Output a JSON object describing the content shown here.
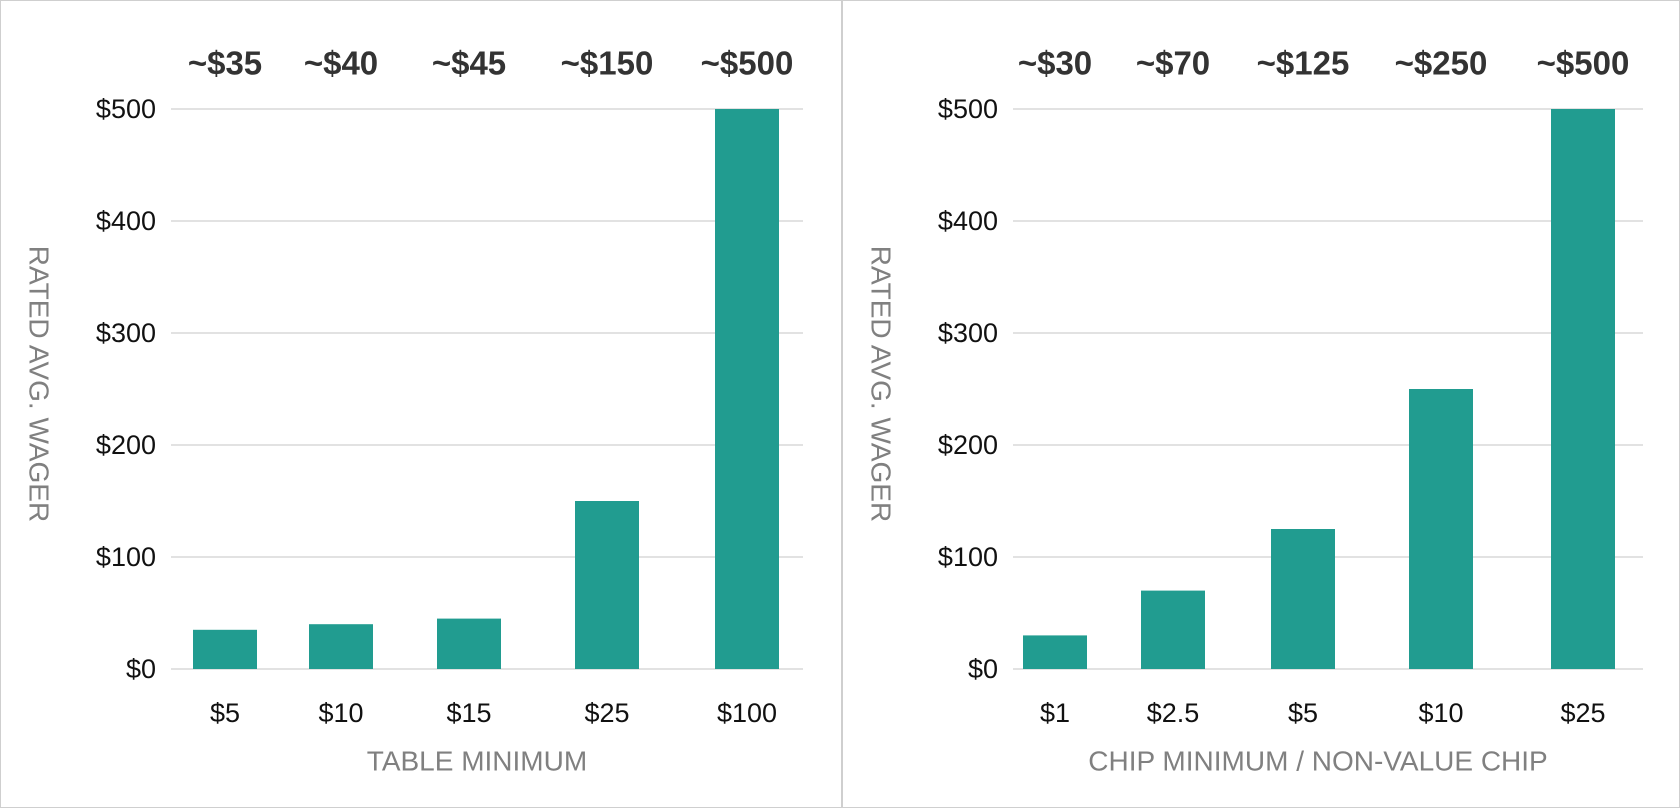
{
  "colors": {
    "bar": "#219c90",
    "grid": "#d9d9d9",
    "axis_text": "#808080",
    "tick_text": "#111111"
  },
  "chart_data": [
    {
      "type": "bar",
      "categories": [
        "$5",
        "$10",
        "$15",
        "$25",
        "$100"
      ],
      "values": [
        35,
        40,
        45,
        150,
        500
      ],
      "bar_labels": [
        "~$35",
        "~$40",
        "~$45",
        "~$150",
        "~$500"
      ],
      "xlabel": "TABLE MINIMUM",
      "ylabel": "RATED AVG. WAGER",
      "ylim": [
        0,
        500
      ],
      "yticks": [
        0,
        100,
        200,
        300,
        400,
        500
      ],
      "ytick_labels": [
        "$0",
        "$100",
        "$200",
        "$300",
        "$400",
        "$500"
      ],
      "grid": true
    },
    {
      "type": "bar",
      "categories": [
        "$1",
        "$2.5",
        "$5",
        "$10",
        "$25"
      ],
      "values": [
        30,
        70,
        125,
        250,
        500
      ],
      "bar_labels": [
        "~$30",
        "~$70",
        "~$125",
        "~$250",
        "~$500"
      ],
      "xlabel": "CHIP MINIMUM / NON-VALUE CHIP",
      "ylabel": "RATED AVG. WAGER",
      "ylim": [
        0,
        500
      ],
      "yticks": [
        0,
        100,
        200,
        300,
        400,
        500
      ],
      "ytick_labels": [
        "$0",
        "$100",
        "$200",
        "$300",
        "$400",
        "$500"
      ],
      "grid": true
    }
  ]
}
